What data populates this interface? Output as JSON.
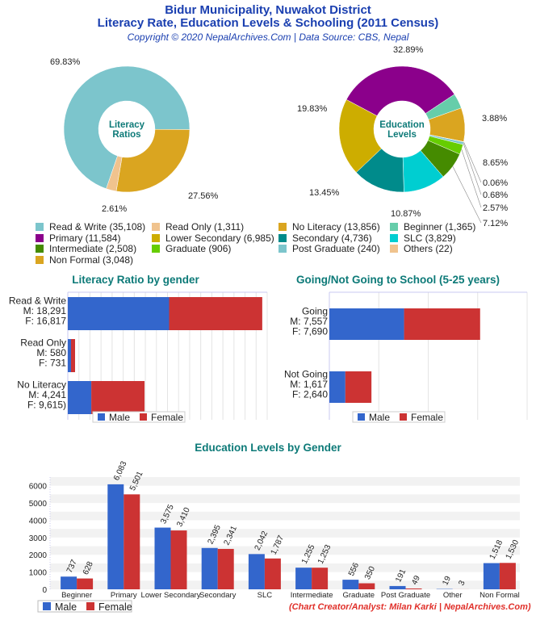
{
  "header": {
    "title1": "Bidur Municipality, Nuwakot District",
    "title2": "Literacy Rate, Education Levels & Schooling (2011 Census)",
    "subtitle": "Copyright © 2020 NepalArchives.Com | Data Source: CBS, Nepal"
  },
  "credit": "(Chart Creator/Analyst: Milan Karki | NepalArchives.Com)",
  "colors": {
    "male": "#3366cc",
    "female": "#cc3333",
    "accent_title": "#0d7a78"
  },
  "chart_data": [
    {
      "type": "pie",
      "donut": true,
      "center_label": "Literacy Ratios",
      "slices": [
        {
          "name": "Read & Write",
          "value": 35108,
          "percent": "69.83%",
          "color": "#7cc5cc"
        },
        {
          "name": "No Literacy",
          "value": 13856,
          "percent": "27.56%",
          "color": "#daa520"
        },
        {
          "name": "Read Only",
          "value": 1311,
          "percent": "2.61%",
          "color": "#f0c38e"
        }
      ]
    },
    {
      "type": "pie",
      "donut": true,
      "center_label": "Education Levels",
      "slices": [
        {
          "name": "Primary",
          "value": 11584,
          "percent": "32.89%",
          "color": "#8b008b"
        },
        {
          "name": "Beginner",
          "value": 1365,
          "percent": "3.88%",
          "color": "#66cdaa"
        },
        {
          "name": "Non Formal",
          "value": 3048,
          "percent": "8.65%",
          "color": "#daa520"
        },
        {
          "name": "Others",
          "value": 22,
          "percent": "0.06%",
          "color": "#f0c38e"
        },
        {
          "name": "Post Graduate",
          "value": 240,
          "percent": "0.68%",
          "color": "#7cc5cc"
        },
        {
          "name": "Graduate",
          "value": 906,
          "percent": "2.57%",
          "color": "#66cd00"
        },
        {
          "name": "Intermediate",
          "value": 2508,
          "percent": "7.12%",
          "color": "#458b00"
        },
        {
          "name": "SLC",
          "value": 3829,
          "percent": "10.87%",
          "color": "#00ced1"
        },
        {
          "name": "Secondary",
          "value": 4736,
          "percent": "13.45%",
          "color": "#008b8b"
        },
        {
          "name": "Lower Secondary",
          "value": 6985,
          "percent": "19.83%",
          "color": "#cdad00"
        }
      ]
    },
    {
      "type": "bar",
      "orientation": "horizontal",
      "stacked": true,
      "title": "Literacy Ratio by gender",
      "xlim": [
        0,
        36000
      ],
      "categories": [
        "Read & Write\nM: 18,291\nF: 16,817",
        "Read Only\nM: 580\nF: 731",
        "No Literacy\nM: 4,241\nF: 9,615)"
      ],
      "series": [
        {
          "name": "Male",
          "values": [
            18291,
            580,
            4241
          ]
        },
        {
          "name": "Female",
          "values": [
            16817,
            731,
            9615
          ]
        }
      ],
      "legend": "bottom"
    },
    {
      "type": "bar",
      "orientation": "horizontal",
      "stacked": true,
      "title": "Going/Not Going to School (5-25 years)",
      "xlim": [
        0,
        20000
      ],
      "categories": [
        "Going\nM: 7,557\nF: 7,690",
        "Not Going\nM: 1,617\nF: 2,640"
      ],
      "series": [
        {
          "name": "Male",
          "values": [
            7557,
            1617
          ]
        },
        {
          "name": "Female",
          "values": [
            7690,
            2640
          ]
        }
      ],
      "legend": "bottom"
    },
    {
      "type": "bar",
      "title": "Education Levels by Gender",
      "ylim": [
        0,
        6500
      ],
      "yticks": [
        0,
        1000,
        2000,
        3000,
        4000,
        5000,
        6000
      ],
      "categories": [
        "Beginner",
        "Primary",
        "Lower Secondary",
        "Secondary",
        "SLC",
        "Intermediate",
        "Graduate",
        "Post Graduate",
        "Other",
        "Non Formal"
      ],
      "series": [
        {
          "name": "Male",
          "values": [
            737,
            6083,
            3575,
            2395,
            2042,
            1255,
            556,
            191,
            19,
            1518
          ],
          "labels": [
            "737",
            "6,083",
            "3,575",
            "2,395",
            "2,042",
            "1,255",
            "556",
            "191",
            "19",
            "1,518"
          ]
        },
        {
          "name": "Female",
          "values": [
            628,
            5501,
            3410,
            2341,
            1787,
            1253,
            350,
            49,
            3,
            1530
          ],
          "labels": [
            "628",
            "5,501",
            "3,410",
            "2,341",
            "1,787",
            "1,253",
            "350",
            "49",
            "3",
            "1,530"
          ]
        }
      ],
      "legend": "bottom-left"
    }
  ],
  "legend1": [
    {
      "label": "Read & Write (35,108)",
      "color": "#7cc5cc"
    },
    {
      "label": "Read Only (1,311)",
      "color": "#f0c38e"
    },
    {
      "label": "No Literacy (13,856)",
      "color": "#daa520"
    },
    {
      "label": "Beginner (1,365)",
      "color": "#66cdaa"
    },
    {
      "label": "Primary (11,584)",
      "color": "#8b008b"
    },
    {
      "label": "Lower Secondary (6,985)",
      "color": "#cdad00"
    },
    {
      "label": "Secondary (4,736)",
      "color": "#008b8b"
    },
    {
      "label": "SLC (3,829)",
      "color": "#00ced1"
    },
    {
      "label": "Intermediate (2,508)",
      "color": "#458b00"
    },
    {
      "label": "Graduate (906)",
      "color": "#66cd00"
    },
    {
      "label": "Post Graduate (240)",
      "color": "#7cc5cc"
    },
    {
      "label": "Others (22)",
      "color": "#f0c38e"
    },
    {
      "label": "Non Formal (3,048)",
      "color": "#daa520"
    }
  ]
}
